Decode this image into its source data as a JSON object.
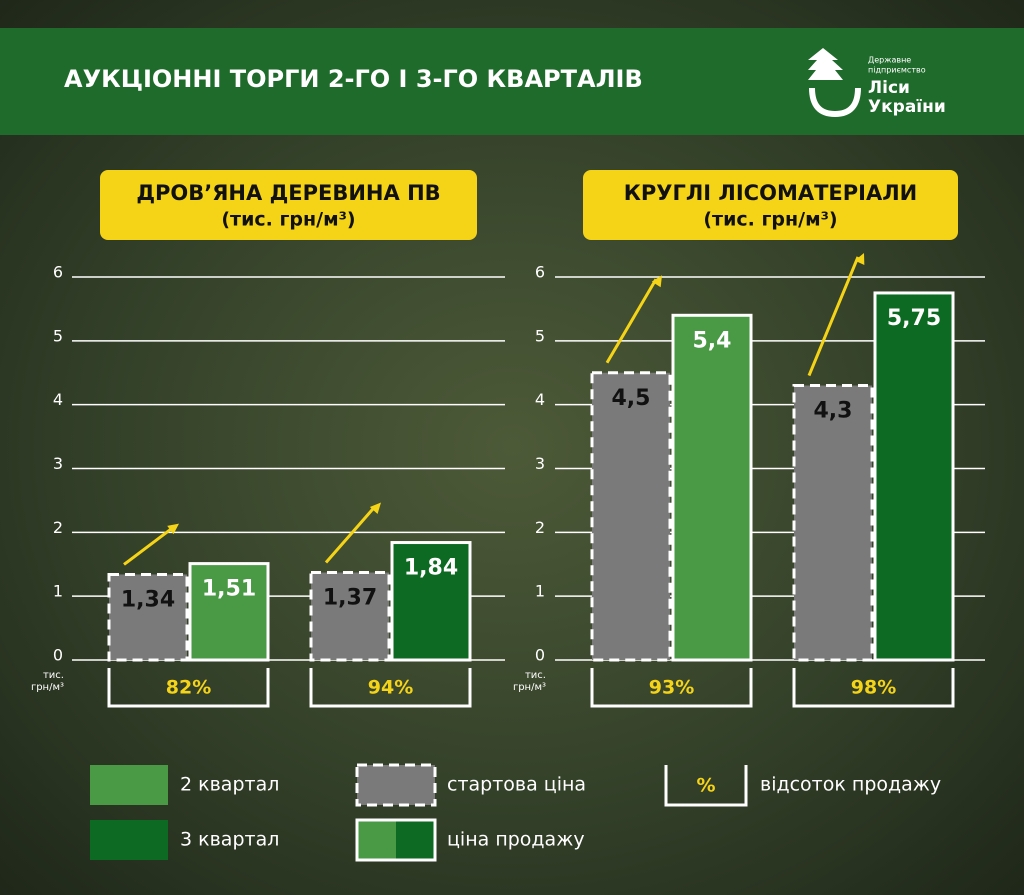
{
  "header": {
    "title": "АУКЦІОННІ ТОРГИ 2-ГО І 3-ГО КВАРТАЛІВ",
    "logo": {
      "line1": "Державне",
      "line2": "підприємство",
      "name1": "Ліси",
      "name2": "України"
    }
  },
  "chart_data": [
    {
      "type": "bar",
      "title": "ДРОВ’ЯНА ДЕРЕВИНА ПВ",
      "subtitle": "(тис. грн/м³)",
      "y_label": "тис. грн/м³",
      "ylim": [
        0,
        6
      ],
      "yticks": [
        0,
        1,
        2,
        3,
        4,
        5,
        6
      ],
      "grid": true,
      "series": [
        {
          "name": "стартова ціна",
          "color": "#7a7a7a",
          "values": [
            1.34,
            1.37
          ],
          "value_labels": [
            "1,34",
            "1,37"
          ]
        },
        {
          "name": "ціна продажу",
          "colors": [
            "#4a9a45",
            "#0d6a22"
          ],
          "values": [
            1.51,
            1.84
          ],
          "value_labels": [
            "1,51",
            "1,84"
          ]
        }
      ],
      "percent_sold": {
        "values": [
          82,
          94
        ],
        "value_labels": [
          "82%",
          "94%"
        ]
      }
    },
    {
      "type": "bar",
      "title": "КРУГЛІ ЛІСОМАТЕРІАЛИ",
      "subtitle": "(тис. грн/м³)",
      "y_label": "тис. грн/м³",
      "ylim": [
        0,
        6
      ],
      "yticks": [
        0,
        1,
        2,
        3,
        4,
        5,
        6
      ],
      "grid": true,
      "series": [
        {
          "name": "стартова ціна",
          "color": "#7a7a7a",
          "values": [
            4.5,
            4.3
          ],
          "value_labels": [
            "4,5",
            "4,3"
          ]
        },
        {
          "name": "ціна продажу",
          "colors": [
            "#4a9a45",
            "#0d6a22"
          ],
          "values": [
            5.4,
            5.75
          ],
          "value_labels": [
            "5,4",
            "5,75"
          ]
        }
      ],
      "percent_sold": {
        "values": [
          93,
          98
        ],
        "value_labels": [
          "93%",
          "98%"
        ]
      }
    }
  ],
  "legend": {
    "quarter2": {
      "label": "2 квартал",
      "color": "#4a9a45"
    },
    "quarter3": {
      "label": "3 квартал",
      "color": "#0d6a22"
    },
    "start": {
      "label": "стартова ціна"
    },
    "sale": {
      "label": "ціна продажу"
    },
    "percent": {
      "symbol": "%",
      "label": "відсоток продажу"
    }
  }
}
